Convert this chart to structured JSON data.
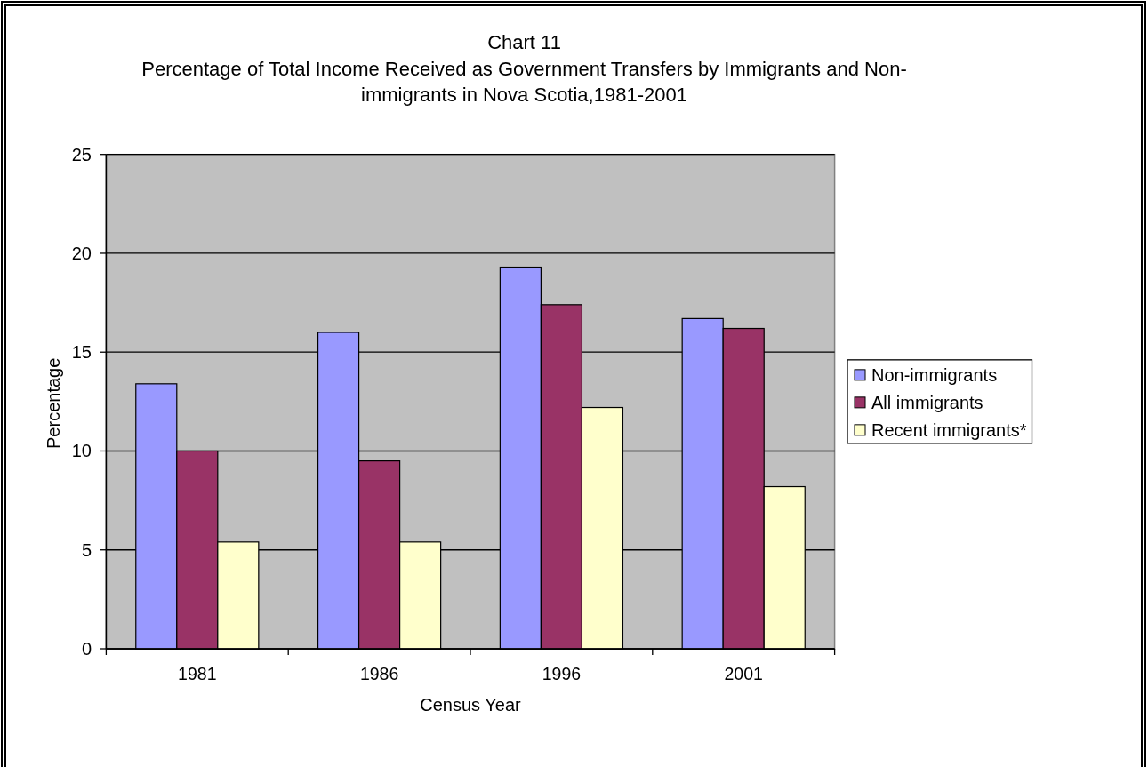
{
  "chart_data": {
    "type": "bar",
    "title": "Chart 11",
    "subtitle": "Percentage of Total Income Received as Government Transfers by Immigrants and Non-immigrants in Nova Scotia,1981-2001",
    "xlabel": "Census Year",
    "ylabel": "Percentage",
    "categories": [
      "1981",
      "1986",
      "1996",
      "2001"
    ],
    "series": [
      {
        "name": "Non-immigrants",
        "color": "#9999ff",
        "values": [
          13.4,
          16.0,
          19.3,
          16.7
        ]
      },
      {
        "name": "All immigrants",
        "color": "#993366",
        "values": [
          10.0,
          9.5,
          17.4,
          16.2
        ]
      },
      {
        "name": "Recent immigrants*",
        "color": "#ffffcc",
        "values": [
          5.4,
          5.4,
          12.2,
          8.2
        ]
      }
    ],
    "ylim": [
      0,
      25
    ],
    "yticks": [
      0,
      5,
      10,
      15,
      20,
      25
    ],
    "grid": "y",
    "legend": "right"
  }
}
